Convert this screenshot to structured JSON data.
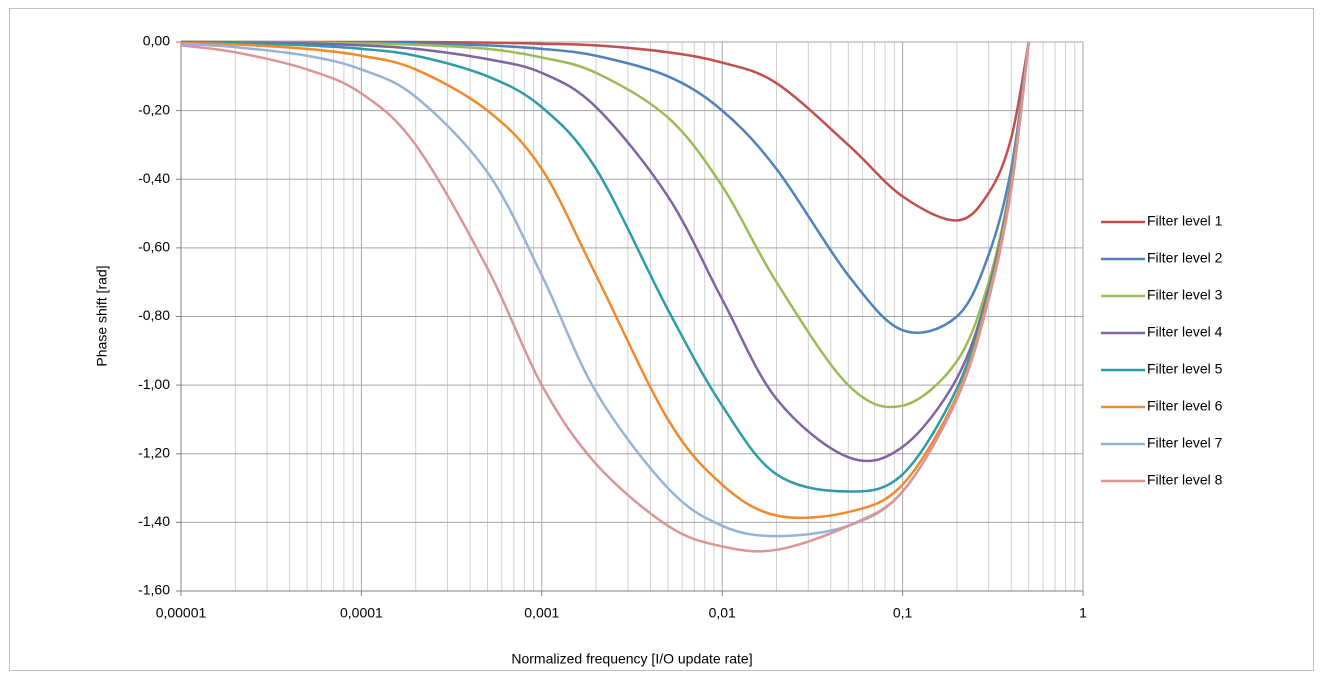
{
  "chart_data": {
    "type": "line",
    "x_label": "Normalized frequency [I/O update rate]",
    "y_label": "Phase shift [rad]",
    "x_scale": "log",
    "grid": true,
    "minor_grid": true,
    "legend": "right",
    "xlim": [
      1e-05,
      1
    ],
    "xticks": [
      {
        "value": 1e-05,
        "label": "0,00001"
      },
      {
        "value": 0.0001,
        "label": "0,0001"
      },
      {
        "value": 0.001,
        "label": "0,001"
      },
      {
        "value": 0.01,
        "label": "0,01"
      },
      {
        "value": 0.1,
        "label": "0,1"
      },
      1
    ],
    "ylim": [
      -1.6,
      0
    ],
    "yticks": [
      {
        "value": 0,
        "label": "0,00"
      },
      {
        "value": -0.2,
        "label": "-0,20"
      },
      {
        "value": -0.4,
        "label": "-0,40"
      },
      {
        "value": -0.6,
        "label": "-0,60"
      },
      {
        "value": -0.8,
        "label": "-0,80"
      },
      {
        "value": -1.0,
        "label": "-1,00"
      },
      {
        "value": -1.2,
        "label": "-1,20"
      },
      {
        "value": -1.4,
        "label": "-1,40"
      },
      {
        "value": -1.6,
        "label": "-1,60"
      }
    ],
    "x": [
      1e-05,
      2e-05,
      5e-05,
      0.0001,
      0.0002,
      0.0005,
      0.001,
      0.002,
      0.005,
      0.01,
      0.02,
      0.05,
      0.1,
      0.2,
      0.3,
      0.4,
      0.5
    ],
    "series": [
      {
        "name": "Filter level 1",
        "color": "#c0504d",
        "values": [
          0,
          0,
          0,
          0,
          0,
          -0.002,
          -0.005,
          -0.01,
          -0.03,
          -0.06,
          -0.12,
          -0.3,
          -0.45,
          -0.52,
          -0.44,
          -0.28,
          0
        ]
      },
      {
        "name": "Filter level 2",
        "color": "#4f81bd",
        "values": [
          0,
          0,
          -0.001,
          -0.002,
          -0.004,
          -0.01,
          -0.02,
          -0.04,
          -0.1,
          -0.2,
          -0.37,
          -0.68,
          -0.84,
          -0.8,
          -0.62,
          -0.37,
          0
        ]
      },
      {
        "name": "Filter level 3",
        "color": "#9bbb59",
        "values": [
          0,
          0,
          -0.002,
          -0.004,
          -0.008,
          -0.02,
          -0.045,
          -0.09,
          -0.22,
          -0.42,
          -0.7,
          -1.0,
          -1.06,
          -0.93,
          -0.7,
          -0.4,
          0
        ]
      },
      {
        "name": "Filter level 4",
        "color": "#8064a2",
        "values": [
          0,
          -0.001,
          -0.004,
          -0.01,
          -0.02,
          -0.05,
          -0.09,
          -0.19,
          -0.45,
          -0.75,
          -1.04,
          -1.21,
          -1.18,
          -0.98,
          -0.72,
          -0.41,
          0
        ]
      },
      {
        "name": "Filter level 5",
        "color": "#2f9aa8",
        "values": [
          -0.001,
          -0.003,
          -0.01,
          -0.02,
          -0.04,
          -0.1,
          -0.19,
          -0.37,
          -0.78,
          -1.06,
          -1.26,
          -1.31,
          -1.26,
          -1.01,
          -0.73,
          -0.42,
          0
        ]
      },
      {
        "name": "Filter level 6",
        "color": "#f08a2c",
        "values": [
          -0.003,
          -0.007,
          -0.02,
          -0.04,
          -0.08,
          -0.2,
          -0.37,
          -0.68,
          -1.1,
          -1.29,
          -1.38,
          -1.37,
          -1.29,
          -1.03,
          -0.74,
          -0.42,
          0
        ]
      },
      {
        "name": "Filter level 7",
        "color": "#95b3d7",
        "values": [
          -0.005,
          -0.015,
          -0.04,
          -0.08,
          -0.16,
          -0.38,
          -0.68,
          -1.02,
          -1.3,
          -1.41,
          -1.44,
          -1.41,
          -1.31,
          -1.04,
          -0.75,
          -0.43,
          0
        ]
      },
      {
        "name": "Filter level 8",
        "color": "#d99694",
        "values": [
          -0.01,
          -0.03,
          -0.08,
          -0.15,
          -0.3,
          -0.66,
          -1.0,
          -1.23,
          -1.41,
          -1.47,
          -1.48,
          -1.41,
          -1.31,
          -1.04,
          -0.75,
          -0.43,
          0
        ]
      }
    ]
  }
}
